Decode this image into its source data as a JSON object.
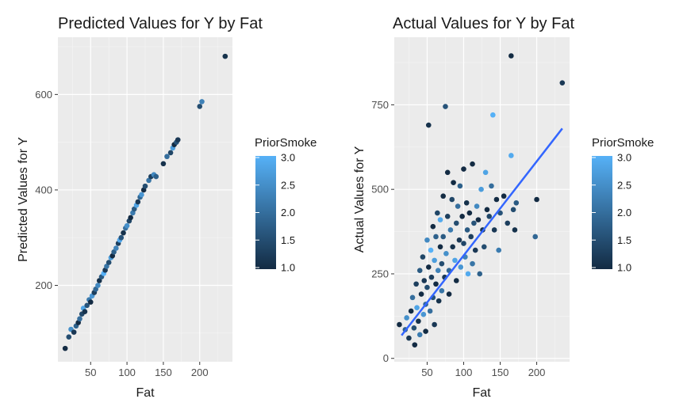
{
  "chart_data": [
    {
      "type": "scatter",
      "title": "Predicted Values for Y by Fat",
      "xlabel": "Fat",
      "ylabel": "Predicted Values for Y",
      "xlim": [
        5,
        245
      ],
      "ylim": [
        40,
        720
      ],
      "xticks": [
        50,
        100,
        150,
        200
      ],
      "xtick_labels": [
        "50",
        "100",
        "150",
        "200"
      ],
      "yticks": [
        200,
        400,
        600
      ],
      "ytick_labels": [
        "200",
        "400",
        "600"
      ],
      "grid": true,
      "legend": {
        "title": "PriorSmoke",
        "position": "right",
        "range": [
          1.0,
          3.0
        ],
        "labels": [
          "3.0",
          "2.5",
          "2.0",
          "1.5",
          "1.0"
        ],
        "colors": [
          "#132B43",
          "#56B1F7"
        ]
      },
      "points": [
        {
          "x": 15,
          "y": 68,
          "c": 1.0
        },
        {
          "x": 20,
          "y": 92,
          "c": 1.5
        },
        {
          "x": 23,
          "y": 108,
          "c": 2.5
        },
        {
          "x": 27,
          "y": 102,
          "c": 1.2
        },
        {
          "x": 30,
          "y": 115,
          "c": 1.8
        },
        {
          "x": 33,
          "y": 122,
          "c": 1.0
        },
        {
          "x": 35,
          "y": 130,
          "c": 2.0
        },
        {
          "x": 38,
          "y": 140,
          "c": 1.4
        },
        {
          "x": 40,
          "y": 152,
          "c": 2.8
        },
        {
          "x": 42,
          "y": 145,
          "c": 1.1
        },
        {
          "x": 45,
          "y": 158,
          "c": 1.6
        },
        {
          "x": 48,
          "y": 170,
          "c": 2.2
        },
        {
          "x": 50,
          "y": 165,
          "c": 1.0
        },
        {
          "x": 52,
          "y": 178,
          "c": 2.6
        },
        {
          "x": 55,
          "y": 185,
          "c": 1.3
        },
        {
          "x": 57,
          "y": 192,
          "c": 1.9
        },
        {
          "x": 60,
          "y": 200,
          "c": 2.4
        },
        {
          "x": 62,
          "y": 210,
          "c": 1.1
        },
        {
          "x": 65,
          "y": 218,
          "c": 1.7
        },
        {
          "x": 68,
          "y": 225,
          "c": 3.0
        },
        {
          "x": 70,
          "y": 232,
          "c": 1.2
        },
        {
          "x": 72,
          "y": 240,
          "c": 2.1
        },
        {
          "x": 75,
          "y": 248,
          "c": 1.5
        },
        {
          "x": 78,
          "y": 258,
          "c": 2.7
        },
        {
          "x": 80,
          "y": 262,
          "c": 1.0
        },
        {
          "x": 82,
          "y": 270,
          "c": 1.8
        },
        {
          "x": 85,
          "y": 278,
          "c": 2.3
        },
        {
          "x": 88,
          "y": 288,
          "c": 1.3
        },
        {
          "x": 90,
          "y": 295,
          "c": 2.9
        },
        {
          "x": 92,
          "y": 300,
          "c": 1.6
        },
        {
          "x": 95,
          "y": 310,
          "c": 1.1
        },
        {
          "x": 98,
          "y": 320,
          "c": 2.0
        },
        {
          "x": 100,
          "y": 325,
          "c": 2.5
        },
        {
          "x": 103,
          "y": 335,
          "c": 1.4
        },
        {
          "x": 105,
          "y": 342,
          "c": 1.0
        },
        {
          "x": 108,
          "y": 352,
          "c": 2.2
        },
        {
          "x": 110,
          "y": 360,
          "c": 1.7
        },
        {
          "x": 113,
          "y": 368,
          "c": 2.8
        },
        {
          "x": 115,
          "y": 375,
          "c": 1.2
        },
        {
          "x": 118,
          "y": 385,
          "c": 1.9
        },
        {
          "x": 120,
          "y": 390,
          "c": 2.6
        },
        {
          "x": 123,
          "y": 400,
          "c": 1.0
        },
        {
          "x": 125,
          "y": 408,
          "c": 1.5
        },
        {
          "x": 130,
          "y": 420,
          "c": 2.1
        },
        {
          "x": 133,
          "y": 428,
          "c": 1.3
        },
        {
          "x": 137,
          "y": 432,
          "c": 2.4
        },
        {
          "x": 140,
          "y": 428,
          "c": 1.8
        },
        {
          "x": 150,
          "y": 455,
          "c": 1.1
        },
        {
          "x": 155,
          "y": 470,
          "c": 2.0
        },
        {
          "x": 160,
          "y": 478,
          "c": 1.4
        },
        {
          "x": 163,
          "y": 488,
          "c": 2.7
        },
        {
          "x": 165,
          "y": 495,
          "c": 1.0
        },
        {
          "x": 168,
          "y": 500,
          "c": 1.6
        },
        {
          "x": 170,
          "y": 505,
          "c": 1.2
        },
        {
          "x": 200,
          "y": 575,
          "c": 1.5
        },
        {
          "x": 203,
          "y": 585,
          "c": 2.3
        },
        {
          "x": 235,
          "y": 680,
          "c": 1.1
        }
      ]
    },
    {
      "type": "scatter",
      "title": "Actual Values for Y by Fat",
      "xlabel": "Fat",
      "ylabel": "Actual Values for Y",
      "xlim": [
        5,
        245
      ],
      "ylim": [
        -10,
        950
      ],
      "xticks": [
        50,
        100,
        150,
        200
      ],
      "xtick_labels": [
        "50",
        "100",
        "150",
        "200"
      ],
      "yticks": [
        0,
        250,
        500,
        750
      ],
      "ytick_labels": [
        "0",
        "250",
        "500",
        "750"
      ],
      "grid": true,
      "trend_line": {
        "x": [
          15,
          235
        ],
        "y": [
          68,
          680
        ],
        "color": "#3366FF"
      },
      "legend": {
        "title": "PriorSmoke",
        "position": "right",
        "range": [
          1.0,
          3.0
        ],
        "labels": [
          "3.0",
          "2.5",
          "2.0",
          "1.5",
          "1.0"
        ],
        "colors": [
          "#132B43",
          "#56B1F7"
        ]
      },
      "points": [
        {
          "x": 12,
          "y": 100,
          "c": 1.0
        },
        {
          "x": 20,
          "y": 85,
          "c": 1.8
        },
        {
          "x": 22,
          "y": 120,
          "c": 2.5
        },
        {
          "x": 25,
          "y": 60,
          "c": 1.2
        },
        {
          "x": 28,
          "y": 140,
          "c": 1.0
        },
        {
          "x": 30,
          "y": 180,
          "c": 2.0
        },
        {
          "x": 32,
          "y": 90,
          "c": 1.5
        },
        {
          "x": 33,
          "y": 40,
          "c": 1.0
        },
        {
          "x": 35,
          "y": 220,
          "c": 1.3
        },
        {
          "x": 36,
          "y": 150,
          "c": 2.8
        },
        {
          "x": 38,
          "y": 110,
          "c": 1.1
        },
        {
          "x": 40,
          "y": 260,
          "c": 1.7
        },
        {
          "x": 40,
          "y": 70,
          "c": 2.2
        },
        {
          "x": 42,
          "y": 190,
          "c": 1.0
        },
        {
          "x": 44,
          "y": 300,
          "c": 1.4
        },
        {
          "x": 45,
          "y": 130,
          "c": 2.6
        },
        {
          "x": 46,
          "y": 230,
          "c": 1.2
        },
        {
          "x": 48,
          "y": 160,
          "c": 1.9
        },
        {
          "x": 48,
          "y": 80,
          "c": 1.0
        },
        {
          "x": 50,
          "y": 350,
          "c": 2.4
        },
        {
          "x": 50,
          "y": 210,
          "c": 1.5
        },
        {
          "x": 52,
          "y": 690,
          "c": 1.1
        },
        {
          "x": 52,
          "y": 270,
          "c": 1.0
        },
        {
          "x": 54,
          "y": 140,
          "c": 2.0
        },
        {
          "x": 55,
          "y": 320,
          "c": 3.0
        },
        {
          "x": 56,
          "y": 240,
          "c": 1.3
        },
        {
          "x": 58,
          "y": 180,
          "c": 1.6
        },
        {
          "x": 58,
          "y": 390,
          "c": 1.0
        },
        {
          "x": 60,
          "y": 290,
          "c": 2.7
        },
        {
          "x": 60,
          "y": 100,
          "c": 1.2
        },
        {
          "x": 62,
          "y": 360,
          "c": 1.8
        },
        {
          "x": 62,
          "y": 220,
          "c": 1.0
        },
        {
          "x": 64,
          "y": 430,
          "c": 1.4
        },
        {
          "x": 65,
          "y": 260,
          "c": 2.3
        },
        {
          "x": 66,
          "y": 170,
          "c": 1.1
        },
        {
          "x": 68,
          "y": 330,
          "c": 1.0
        },
        {
          "x": 68,
          "y": 410,
          "c": 2.9
        },
        {
          "x": 70,
          "y": 280,
          "c": 1.5
        },
        {
          "x": 70,
          "y": 200,
          "c": 2.1
        },
        {
          "x": 72,
          "y": 480,
          "c": 1.0
        },
        {
          "x": 72,
          "y": 360,
          "c": 1.7
        },
        {
          "x": 74,
          "y": 240,
          "c": 1.2
        },
        {
          "x": 75,
          "y": 745,
          "c": 1.6
        },
        {
          "x": 76,
          "y": 310,
          "c": 2.5
        },
        {
          "x": 78,
          "y": 550,
          "c": 1.0
        },
        {
          "x": 78,
          "y": 420,
          "c": 1.3
        },
        {
          "x": 80,
          "y": 260,
          "c": 1.9
        },
        {
          "x": 80,
          "y": 190,
          "c": 1.0
        },
        {
          "x": 82,
          "y": 380,
          "c": 2.2
        },
        {
          "x": 84,
          "y": 470,
          "c": 1.4
        },
        {
          "x": 85,
          "y": 330,
          "c": 1.1
        },
        {
          "x": 86,
          "y": 520,
          "c": 1.0
        },
        {
          "x": 88,
          "y": 290,
          "c": 2.8
        },
        {
          "x": 90,
          "y": 400,
          "c": 1.5
        },
        {
          "x": 90,
          "y": 230,
          "c": 1.0
        },
        {
          "x": 92,
          "y": 450,
          "c": 2.0
        },
        {
          "x": 94,
          "y": 350,
          "c": 1.2
        },
        {
          "x": 95,
          "y": 510,
          "c": 1.8
        },
        {
          "x": 96,
          "y": 270,
          "c": 2.6
        },
        {
          "x": 98,
          "y": 420,
          "c": 1.0
        },
        {
          "x": 100,
          "y": 340,
          "c": 1.4
        },
        {
          "x": 100,
          "y": 560,
          "c": 1.0
        },
        {
          "x": 102,
          "y": 300,
          "c": 2.3
        },
        {
          "x": 104,
          "y": 460,
          "c": 1.1
        },
        {
          "x": 105,
          "y": 380,
          "c": 1.7
        },
        {
          "x": 106,
          "y": 250,
          "c": 2.9
        },
        {
          "x": 108,
          "y": 430,
          "c": 1.0
        },
        {
          "x": 110,
          "y": 360,
          "c": 1.3
        },
        {
          "x": 112,
          "y": 575,
          "c": 1.0
        },
        {
          "x": 112,
          "y": 280,
          "c": 2.1
        },
        {
          "x": 114,
          "y": 400,
          "c": 1.6
        },
        {
          "x": 116,
          "y": 320,
          "c": 1.2
        },
        {
          "x": 118,
          "y": 450,
          "c": 2.4
        },
        {
          "x": 120,
          "y": 410,
          "c": 1.0
        },
        {
          "x": 122,
          "y": 250,
          "c": 1.8
        },
        {
          "x": 124,
          "y": 500,
          "c": 2.7
        },
        {
          "x": 126,
          "y": 380,
          "c": 1.1
        },
        {
          "x": 128,
          "y": 330,
          "c": 1.5
        },
        {
          "x": 130,
          "y": 550,
          "c": 2.8
        },
        {
          "x": 132,
          "y": 440,
          "c": 1.0
        },
        {
          "x": 135,
          "y": 420,
          "c": 1.4
        },
        {
          "x": 138,
          "y": 510,
          "c": 2.0
        },
        {
          "x": 140,
          "y": 720,
          "c": 3.0
        },
        {
          "x": 142,
          "y": 380,
          "c": 1.2
        },
        {
          "x": 145,
          "y": 470,
          "c": 1.0
        },
        {
          "x": 148,
          "y": 320,
          "c": 2.2
        },
        {
          "x": 150,
          "y": 430,
          "c": 1.6
        },
        {
          "x": 155,
          "y": 480,
          "c": 1.0
        },
        {
          "x": 160,
          "y": 400,
          "c": 1.3
        },
        {
          "x": 165,
          "y": 895,
          "c": 1.0
        },
        {
          "x": 165,
          "y": 600,
          "c": 2.9
        },
        {
          "x": 168,
          "y": 440,
          "c": 1.5
        },
        {
          "x": 170,
          "y": 380,
          "c": 1.1
        },
        {
          "x": 172,
          "y": 460,
          "c": 1.7
        },
        {
          "x": 200,
          "y": 470,
          "c": 1.0
        },
        {
          "x": 198,
          "y": 360,
          "c": 1.9
        },
        {
          "x": 235,
          "y": 815,
          "c": 1.2
        }
      ]
    }
  ]
}
